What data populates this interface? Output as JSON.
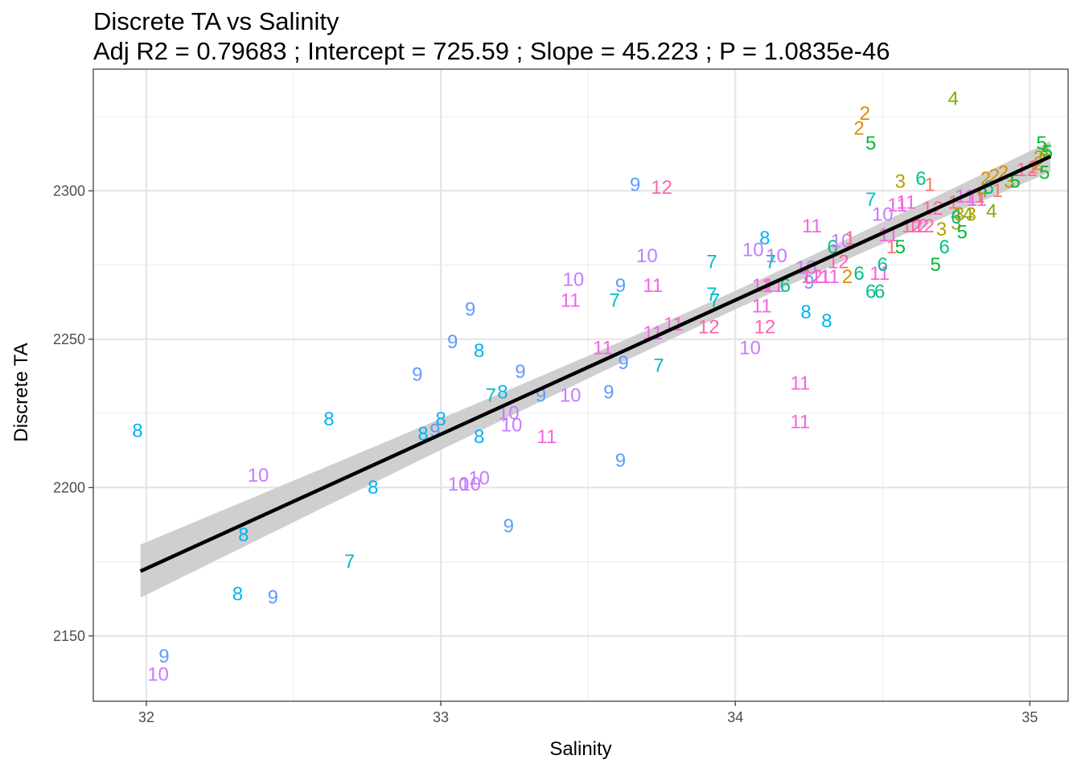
{
  "chart_data": {
    "type": "scatter",
    "title": "Discrete TA vs Salinity",
    "subtitle": "Adj R2 =  0.79683 ; Intercept = 725.59 ; Slope = 45.223 ; P = 1.0835e-46",
    "xlabel": "Salinity",
    "ylabel": "Discrete TA",
    "xlim": [
      31.82,
      35.13
    ],
    "ylim": [
      2128,
      2341
    ],
    "x_ticks": [
      32,
      33,
      34,
      35
    ],
    "y_ticks": [
      2150,
      2200,
      2250,
      2300
    ],
    "x_tick_labels": [
      "32",
      "33",
      "34",
      "35"
    ],
    "y_tick_labels": [
      "2150",
      "2200",
      "2250",
      "2300"
    ],
    "grid": true,
    "legend": "none",
    "marker": "text label = month number",
    "fit": {
      "type": "linear",
      "intercept": 725.59,
      "slope": 45.223,
      "x_range": [
        31.98,
        35.07
      ],
      "confidence_band": true,
      "line_color": "#000000",
      "band_color": "#cccccc"
    },
    "label_colors": {
      "1": "#F8766D",
      "2": "#DE8C00",
      "3": "#B79F00",
      "4": "#7CAE00",
      "5": "#00BA38",
      "6": "#00C08B",
      "7": "#00BFC4",
      "8": "#00B4F0",
      "9": "#619CFF",
      "10": "#C77CFF",
      "11": "#F564E3",
      "12": "#FF64B0"
    },
    "points": [
      {
        "x": 31.97,
        "y": 2219,
        "label": "8"
      },
      {
        "x": 32.06,
        "y": 2143,
        "label": "9"
      },
      {
        "x": 32.04,
        "y": 2137,
        "label": "10"
      },
      {
        "x": 32.31,
        "y": 2164,
        "label": "8"
      },
      {
        "x": 32.33,
        "y": 2184,
        "label": "8"
      },
      {
        "x": 32.43,
        "y": 2163,
        "label": "9"
      },
      {
        "x": 32.38,
        "y": 2204,
        "label": "10"
      },
      {
        "x": 32.62,
        "y": 2223,
        "label": "8"
      },
      {
        "x": 32.69,
        "y": 2175,
        "label": "7"
      },
      {
        "x": 32.77,
        "y": 2200,
        "label": "8"
      },
      {
        "x": 32.92,
        "y": 2238,
        "label": "9"
      },
      {
        "x": 32.94,
        "y": 2218,
        "label": "8"
      },
      {
        "x": 32.98,
        "y": 2219,
        "label": "9"
      },
      {
        "x": 33.0,
        "y": 2223,
        "label": "8"
      },
      {
        "x": 33.04,
        "y": 2249,
        "label": "9"
      },
      {
        "x": 33.06,
        "y": 2201,
        "label": "10"
      },
      {
        "x": 33.1,
        "y": 2201,
        "label": "10"
      },
      {
        "x": 33.13,
        "y": 2203,
        "label": "10"
      },
      {
        "x": 33.1,
        "y": 2260,
        "label": "9"
      },
      {
        "x": 33.13,
        "y": 2246,
        "label": "8"
      },
      {
        "x": 33.13,
        "y": 2217,
        "label": "8"
      },
      {
        "x": 33.17,
        "y": 2231,
        "label": "7"
      },
      {
        "x": 33.21,
        "y": 2232,
        "label": "8"
      },
      {
        "x": 33.23,
        "y": 2225,
        "label": "10"
      },
      {
        "x": 33.24,
        "y": 2221,
        "label": "10"
      },
      {
        "x": 33.23,
        "y": 2187,
        "label": "9"
      },
      {
        "x": 33.27,
        "y": 2239,
        "label": "9"
      },
      {
        "x": 33.36,
        "y": 2217,
        "label": "11"
      },
      {
        "x": 33.34,
        "y": 2231,
        "label": "9"
      },
      {
        "x": 33.44,
        "y": 2231,
        "label": "10"
      },
      {
        "x": 33.44,
        "y": 2263,
        "label": "11"
      },
      {
        "x": 33.45,
        "y": 2270,
        "label": "10"
      },
      {
        "x": 33.55,
        "y": 2247,
        "label": "11"
      },
      {
        "x": 33.57,
        "y": 2232,
        "label": "9"
      },
      {
        "x": 33.59,
        "y": 2263,
        "label": "7"
      },
      {
        "x": 33.61,
        "y": 2268,
        "label": "9"
      },
      {
        "x": 33.62,
        "y": 2242,
        "label": "9"
      },
      {
        "x": 33.61,
        "y": 2209,
        "label": "9"
      },
      {
        "x": 33.66,
        "y": 2302,
        "label": "9"
      },
      {
        "x": 33.7,
        "y": 2278,
        "label": "10"
      },
      {
        "x": 33.72,
        "y": 2268,
        "label": "11"
      },
      {
        "x": 33.72,
        "y": 2252,
        "label": "11"
      },
      {
        "x": 33.74,
        "y": 2241,
        "label": "7"
      },
      {
        "x": 33.75,
        "y": 2301,
        "label": "12"
      },
      {
        "x": 33.79,
        "y": 2255,
        "label": "11"
      },
      {
        "x": 33.92,
        "y": 2276,
        "label": "7"
      },
      {
        "x": 33.92,
        "y": 2265,
        "label": "7"
      },
      {
        "x": 33.93,
        "y": 2263,
        "label": "7"
      },
      {
        "x": 33.91,
        "y": 2254,
        "label": "12"
      },
      {
        "x": 34.05,
        "y": 2247,
        "label": "10"
      },
      {
        "x": 34.06,
        "y": 2280,
        "label": "10"
      },
      {
        "x": 34.09,
        "y": 2268,
        "label": "11"
      },
      {
        "x": 34.09,
        "y": 2261,
        "label": "11"
      },
      {
        "x": 34.14,
        "y": 2278,
        "label": "10"
      },
      {
        "x": 34.13,
        "y": 2268,
        "label": "11"
      },
      {
        "x": 34.12,
        "y": 2276,
        "label": "7"
      },
      {
        "x": 34.1,
        "y": 2284,
        "label": "8"
      },
      {
        "x": 34.17,
        "y": 2268,
        "label": "6"
      },
      {
        "x": 34.1,
        "y": 2254,
        "label": "12"
      },
      {
        "x": 34.22,
        "y": 2235,
        "label": "11"
      },
      {
        "x": 34.22,
        "y": 2222,
        "label": "11"
      },
      {
        "x": 34.24,
        "y": 2259,
        "label": "8"
      },
      {
        "x": 34.25,
        "y": 2269,
        "label": "9"
      },
      {
        "x": 34.24,
        "y": 2274,
        "label": "10"
      },
      {
        "x": 34.26,
        "y": 2271,
        "label": "12"
      },
      {
        "x": 34.29,
        "y": 2271,
        "label": "11"
      },
      {
        "x": 34.26,
        "y": 2288,
        "label": "11"
      },
      {
        "x": 34.31,
        "y": 2256,
        "label": "8"
      },
      {
        "x": 34.32,
        "y": 2271,
        "label": "11"
      },
      {
        "x": 34.33,
        "y": 2281,
        "label": "6"
      },
      {
        "x": 34.35,
        "y": 2276,
        "label": "12"
      },
      {
        "x": 34.36,
        "y": 2283,
        "label": "10"
      },
      {
        "x": 34.39,
        "y": 2284,
        "label": "1"
      },
      {
        "x": 34.38,
        "y": 2271,
        "label": "2"
      },
      {
        "x": 34.42,
        "y": 2272,
        "label": "6"
      },
      {
        "x": 34.42,
        "y": 2321,
        "label": "2"
      },
      {
        "x": 34.44,
        "y": 2326,
        "label": "2"
      },
      {
        "x": 34.46,
        "y": 2316,
        "label": "5"
      },
      {
        "x": 34.46,
        "y": 2297,
        "label": "7"
      },
      {
        "x": 34.46,
        "y": 2266,
        "label": "6"
      },
      {
        "x": 34.49,
        "y": 2266,
        "label": "6"
      },
      {
        "x": 34.49,
        "y": 2272,
        "label": "11"
      },
      {
        "x": 34.5,
        "y": 2275,
        "label": "6"
      },
      {
        "x": 34.5,
        "y": 2292,
        "label": "10"
      },
      {
        "x": 34.52,
        "y": 2285,
        "label": "11"
      },
      {
        "x": 34.53,
        "y": 2281,
        "label": "1"
      },
      {
        "x": 34.55,
        "y": 2295,
        "label": "11"
      },
      {
        "x": 34.56,
        "y": 2281,
        "label": "5"
      },
      {
        "x": 34.56,
        "y": 2303,
        "label": "3"
      },
      {
        "x": 34.58,
        "y": 2296,
        "label": "11"
      },
      {
        "x": 34.6,
        "y": 2288,
        "label": "12"
      },
      {
        "x": 34.62,
        "y": 2288,
        "label": "12"
      },
      {
        "x": 34.63,
        "y": 2304,
        "label": "6"
      },
      {
        "x": 34.64,
        "y": 2288,
        "label": "12"
      },
      {
        "x": 34.66,
        "y": 2302,
        "label": "1"
      },
      {
        "x": 34.67,
        "y": 2294,
        "label": "12"
      },
      {
        "x": 34.68,
        "y": 2275,
        "label": "5"
      },
      {
        "x": 34.7,
        "y": 2287,
        "label": "3"
      },
      {
        "x": 34.71,
        "y": 2281,
        "label": "6"
      },
      {
        "x": 34.74,
        "y": 2331,
        "label": "4"
      },
      {
        "x": 34.74,
        "y": 2296,
        "label": "1"
      },
      {
        "x": 34.75,
        "y": 2292,
        "label": "4"
      },
      {
        "x": 34.75,
        "y": 2289,
        "label": "3"
      },
      {
        "x": 34.75,
        "y": 2291,
        "label": "6"
      },
      {
        "x": 34.76,
        "y": 2292,
        "label": "3"
      },
      {
        "x": 34.77,
        "y": 2286,
        "label": "5"
      },
      {
        "x": 34.78,
        "y": 2298,
        "label": "11"
      },
      {
        "x": 34.79,
        "y": 2292,
        "label": "4"
      },
      {
        "x": 34.8,
        "y": 2292,
        "label": "3"
      },
      {
        "x": 34.82,
        "y": 2297,
        "label": "11"
      },
      {
        "x": 34.83,
        "y": 2298,
        "label": "1"
      },
      {
        "x": 34.84,
        "y": 2300,
        "label": "4"
      },
      {
        "x": 34.85,
        "y": 2304,
        "label": "2"
      },
      {
        "x": 34.86,
        "y": 2301,
        "label": "6"
      },
      {
        "x": 34.87,
        "y": 2293,
        "label": "4"
      },
      {
        "x": 34.88,
        "y": 2305,
        "label": "2"
      },
      {
        "x": 34.89,
        "y": 2300,
        "label": "1"
      },
      {
        "x": 34.91,
        "y": 2306,
        "label": "2"
      },
      {
        "x": 34.93,
        "y": 2303,
        "label": "3"
      },
      {
        "x": 34.95,
        "y": 2303,
        "label": "5"
      },
      {
        "x": 34.99,
        "y": 2307,
        "label": "12"
      },
      {
        "x": 35.01,
        "y": 2308,
        "label": "1"
      },
      {
        "x": 35.03,
        "y": 2309,
        "label": "2"
      },
      {
        "x": 35.03,
        "y": 2311,
        "label": "3"
      },
      {
        "x": 35.04,
        "y": 2316,
        "label": "5"
      },
      {
        "x": 35.05,
        "y": 2313,
        "label": "4"
      },
      {
        "x": 35.06,
        "y": 2313,
        "label": "5"
      },
      {
        "x": 35.05,
        "y": 2306,
        "label": "5"
      }
    ]
  }
}
